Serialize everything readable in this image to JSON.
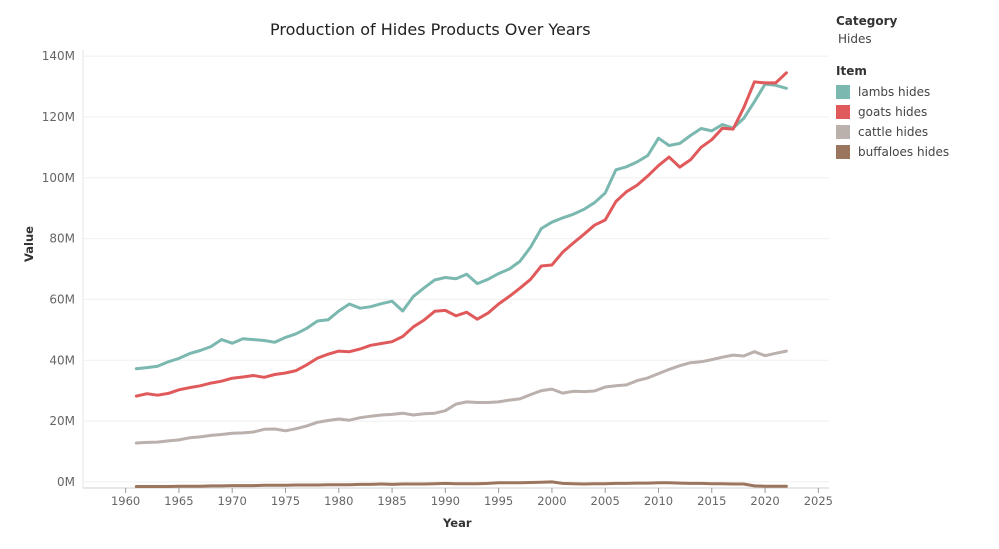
{
  "chart_data": {
    "type": "line",
    "title": "Production of Hides Products Over Years",
    "xlabel": "Year",
    "ylabel": "Value",
    "xlim": [
      1956,
      2026
    ],
    "ylim": [
      -2000000,
      142000000
    ],
    "x_ticks": [
      1960,
      1965,
      1970,
      1975,
      1980,
      1985,
      1990,
      1995,
      2000,
      2005,
      2010,
      2015,
      2020,
      2025
    ],
    "y_ticks": [
      0,
      20000000,
      40000000,
      60000000,
      80000000,
      100000000,
      120000000,
      140000000
    ],
    "y_tick_labels": [
      "0M",
      "20M",
      "40M",
      "60M",
      "80M",
      "100M",
      "120M",
      "140M"
    ],
    "grid": true,
    "legend_position": "right",
    "x": [
      1961,
      1962,
      1963,
      1964,
      1965,
      1966,
      1967,
      1968,
      1969,
      1970,
      1971,
      1972,
      1973,
      1974,
      1975,
      1976,
      1977,
      1978,
      1979,
      1980,
      1981,
      1982,
      1983,
      1984,
      1985,
      1986,
      1987,
      1988,
      1989,
      1990,
      1991,
      1992,
      1993,
      1994,
      1995,
      1996,
      1997,
      1998,
      1999,
      2000,
      2001,
      2002,
      2003,
      2004,
      2005,
      2006,
      2007,
      2008,
      2009,
      2010,
      2011,
      2012,
      2013,
      2014,
      2015,
      2016,
      2017,
      2018,
      2019,
      2020,
      2021,
      2022
    ],
    "series": [
      {
        "name": "lambs hides",
        "color": "#7ab8b0",
        "values": [
          37.2,
          37.6,
          38.0,
          39.5,
          40.6,
          42.2,
          43.2,
          44.5,
          46.8,
          45.6,
          47.1,
          46.8,
          46.5,
          45.9,
          47.5,
          48.7,
          50.5,
          52.9,
          53.3,
          56.2,
          58.5,
          57.1,
          57.6,
          58.6,
          59.4,
          56.2,
          61.0,
          63.8,
          66.4,
          67.2,
          66.8,
          68.3,
          65.2,
          66.6,
          68.5,
          70.0,
          72.5,
          77.2,
          83.3,
          85.4,
          86.8,
          88.0,
          89.6,
          91.8,
          95.0,
          102.6,
          103.6,
          105.2,
          107.3,
          113.0,
          110.6,
          111.3,
          113.9,
          116.2,
          115.4,
          117.5,
          116.3,
          119.5,
          125.0,
          130.8,
          130.4,
          129.4
        ]
      },
      {
        "name": "goats hides",
        "color": "#e05a5b",
        "values": [
          28.2,
          29.0,
          28.5,
          29.1,
          30.3,
          31.0,
          31.6,
          32.5,
          33.1,
          34.1,
          34.5,
          35.0,
          34.4,
          35.3,
          35.8,
          36.6,
          38.5,
          40.7,
          42.0,
          43.0,
          42.8,
          43.7,
          44.9,
          45.5,
          46.1,
          47.8,
          51.0,
          53.2,
          56.1,
          56.4,
          54.6,
          55.8,
          53.5,
          55.5,
          58.5,
          61.0,
          63.7,
          66.6,
          71.0,
          71.3,
          75.5,
          78.5,
          81.4,
          84.4,
          86.1,
          92.2,
          95.4,
          97.6,
          100.6,
          104.0,
          106.8,
          103.5,
          105.9,
          110.0,
          112.5,
          116.3,
          116.0,
          123.0,
          131.5,
          131.2,
          131.2,
          134.5
        ]
      },
      {
        "name": "cattle hides",
        "color": "#bab0ac",
        "values": [
          12.8,
          13.0,
          13.1,
          13.5,
          13.8,
          14.5,
          14.8,
          15.3,
          15.6,
          16.0,
          16.1,
          16.4,
          17.3,
          17.4,
          16.8,
          17.5,
          18.4,
          19.6,
          20.2,
          20.7,
          20.3,
          21.1,
          21.6,
          22.0,
          22.2,
          22.6,
          22.0,
          22.4,
          22.6,
          23.4,
          25.6,
          26.3,
          26.1,
          26.1,
          26.3,
          26.9,
          27.3,
          28.7,
          30.0,
          30.5,
          29.2,
          29.8,
          29.7,
          29.9,
          31.2,
          31.6,
          31.9,
          33.3,
          34.2,
          35.6,
          37.0,
          38.2,
          39.2,
          39.5,
          40.2,
          41.0,
          41.7,
          41.4,
          42.8,
          41.5,
          42.3,
          43.0
        ]
      },
      {
        "name": "buffaloes hides",
        "color": "#9c755f",
        "values": [
          -1.5,
          -1.5,
          -1.5,
          -1.5,
          -1.4,
          -1.4,
          -1.4,
          -1.3,
          -1.3,
          -1.2,
          -1.2,
          -1.2,
          -1.1,
          -1.1,
          -1.1,
          -1.0,
          -1.0,
          -1.0,
          -0.9,
          -0.9,
          -0.9,
          -0.8,
          -0.8,
          -0.7,
          -0.8,
          -0.7,
          -0.7,
          -0.7,
          -0.6,
          -0.5,
          -0.6,
          -0.6,
          -0.6,
          -0.5,
          -0.3,
          -0.3,
          -0.3,
          -0.2,
          -0.1,
          0.0,
          -0.5,
          -0.6,
          -0.7,
          -0.6,
          -0.6,
          -0.5,
          -0.5,
          -0.4,
          -0.4,
          -0.3,
          -0.3,
          -0.4,
          -0.5,
          -0.5,
          -0.6,
          -0.6,
          -0.7,
          -0.7,
          -1.3,
          -1.4,
          -1.4,
          -1.4
        ]
      }
    ]
  },
  "legend": {
    "category_title": "Category",
    "category_value": "Hides",
    "item_title": "Item",
    "items": [
      {
        "label": "lambs hides",
        "color": "#7ab8b0"
      },
      {
        "label": "goats hides",
        "color": "#e05a5b"
      },
      {
        "label": "cattle hides",
        "color": "#bab0ac"
      },
      {
        "label": "buffaloes hides",
        "color": "#9c755f"
      }
    ]
  }
}
